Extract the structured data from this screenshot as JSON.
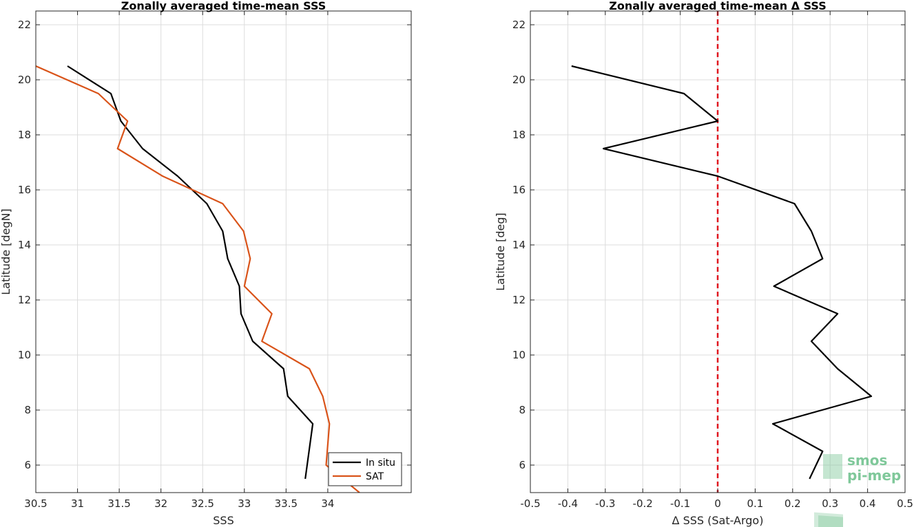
{
  "colors": {
    "insitu": "#000000",
    "sat": "#d95319",
    "zero_line": "#e0141e",
    "grid": "#dcdcdc",
    "axis": "#262626",
    "logo": "#7fc89a"
  },
  "logo": {
    "line1": "smos",
    "line2": "pi-mep"
  },
  "chart_data": [
    {
      "type": "line",
      "title": "Zonally averaged time-mean SSS",
      "xlabel": "SSS",
      "ylabel": "Latitude [degN]",
      "xlim": [
        30.5,
        35.0
      ],
      "ylim": [
        5,
        22.5
      ],
      "xticks": [
        30.5,
        31,
        31.5,
        32,
        32.5,
        33,
        33.5,
        34
      ],
      "xtick_labels": [
        "30.5",
        "31",
        "31.5",
        "32",
        "32.5",
        "33",
        "33.5",
        "34"
      ],
      "yticks": [
        6,
        8,
        10,
        12,
        14,
        16,
        18,
        20,
        22
      ],
      "ytick_labels": [
        "6",
        "8",
        "10",
        "12",
        "14",
        "16",
        "18",
        "20",
        "22"
      ],
      "grid": true,
      "legend_position": "bottom-right",
      "series": [
        {
          "name": "In situ",
          "color_key": "insitu",
          "x": [
            33.73,
            33.82,
            33.52,
            33.47,
            33.1,
            32.96,
            32.94,
            32.8,
            32.74,
            32.55,
            32.2,
            31.78,
            31.52,
            31.4,
            30.88
          ],
          "y": [
            5.5,
            7.5,
            8.5,
            9.5,
            10.5,
            11.5,
            12.5,
            13.5,
            14.5,
            15.5,
            16.5,
            17.5,
            18.5,
            19.5,
            20.5
          ]
        },
        {
          "name": "SAT",
          "color_key": "sat",
          "x": [
            34.38,
            33.98,
            34.02,
            33.94,
            33.78,
            33.21,
            33.33,
            33.0,
            33.07,
            32.99,
            32.74,
            32.02,
            31.48,
            31.6,
            31.25,
            30.5
          ],
          "y": [
            5.0,
            6.0,
            7.5,
            8.5,
            9.5,
            10.5,
            11.5,
            12.5,
            13.5,
            14.5,
            15.5,
            16.5,
            17.5,
            18.5,
            19.5,
            20.5
          ]
        }
      ]
    },
    {
      "type": "line",
      "title": "Zonally averaged time-mean Δ SSS",
      "xlabel": "Δ SSS (Sat-Argo)",
      "ylabel": "Latitude [deg]",
      "xlim": [
        -0.5,
        0.5
      ],
      "ylim": [
        5,
        22.5
      ],
      "xticks": [
        -0.5,
        -0.4,
        -0.3,
        -0.2,
        -0.1,
        0,
        0.1,
        0.2,
        0.3,
        0.4,
        0.5
      ],
      "xtick_labels": [
        "-0.5",
        "-0.4",
        "-0.3",
        "-0.2",
        "-0.1",
        "0",
        "0.1",
        "0.2",
        "0.3",
        "0.4",
        "0.5"
      ],
      "yticks": [
        6,
        8,
        10,
        12,
        14,
        16,
        18,
        20,
        22
      ],
      "ytick_labels": [
        "6",
        "8",
        "10",
        "12",
        "14",
        "16",
        "18",
        "20",
        "22"
      ],
      "grid": true,
      "reference_line_x": 0,
      "series": [
        {
          "name": "",
          "color_key": "insitu",
          "x": [
            0.245,
            0.28,
            0.147,
            0.41,
            0.32,
            0.25,
            0.32,
            0.15,
            0.28,
            0.25,
            0.205,
            0.0,
            -0.305,
            0.0,
            -0.09,
            -0.39
          ],
          "y": [
            5.5,
            6.5,
            7.5,
            8.5,
            9.5,
            10.5,
            11.5,
            12.5,
            13.5,
            14.5,
            15.5,
            16.5,
            17.5,
            18.5,
            19.5,
            20.5
          ]
        }
      ]
    }
  ]
}
